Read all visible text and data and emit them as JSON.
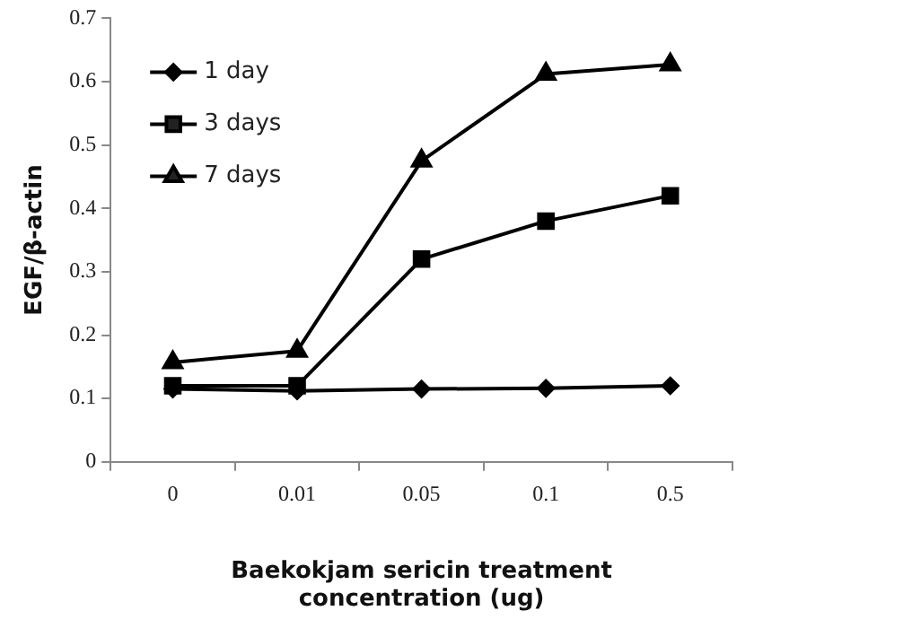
{
  "chart_data": {
    "type": "line",
    "xlabel": "Baekokjam sericin treatment concentration (ug)",
    "ylabel": "EGF/β-actin",
    "categories": [
      "0",
      "0.01",
      "0.05",
      "0.1",
      "0.5"
    ],
    "series": [
      {
        "name": "1 day",
        "color": "#000000",
        "marker": "diamond",
        "values": [
          0.115,
          0.112,
          0.115,
          0.116,
          0.12
        ]
      },
      {
        "name": "3 days",
        "color": "#000000",
        "marker": "square",
        "values": [
          0.12,
          0.12,
          0.32,
          0.38,
          0.42
        ]
      },
      {
        "name": "7 days",
        "color": "#000000",
        "marker": "triangle",
        "values": [
          0.157,
          0.175,
          0.475,
          0.612,
          0.627
        ]
      }
    ],
    "ylim": [
      0,
      0.7
    ],
    "yticks": [
      0,
      0.1,
      0.2,
      0.3,
      0.4,
      0.5,
      0.6,
      0.7
    ],
    "grid": false,
    "legend": "top left",
    "line_style": "solid"
  }
}
